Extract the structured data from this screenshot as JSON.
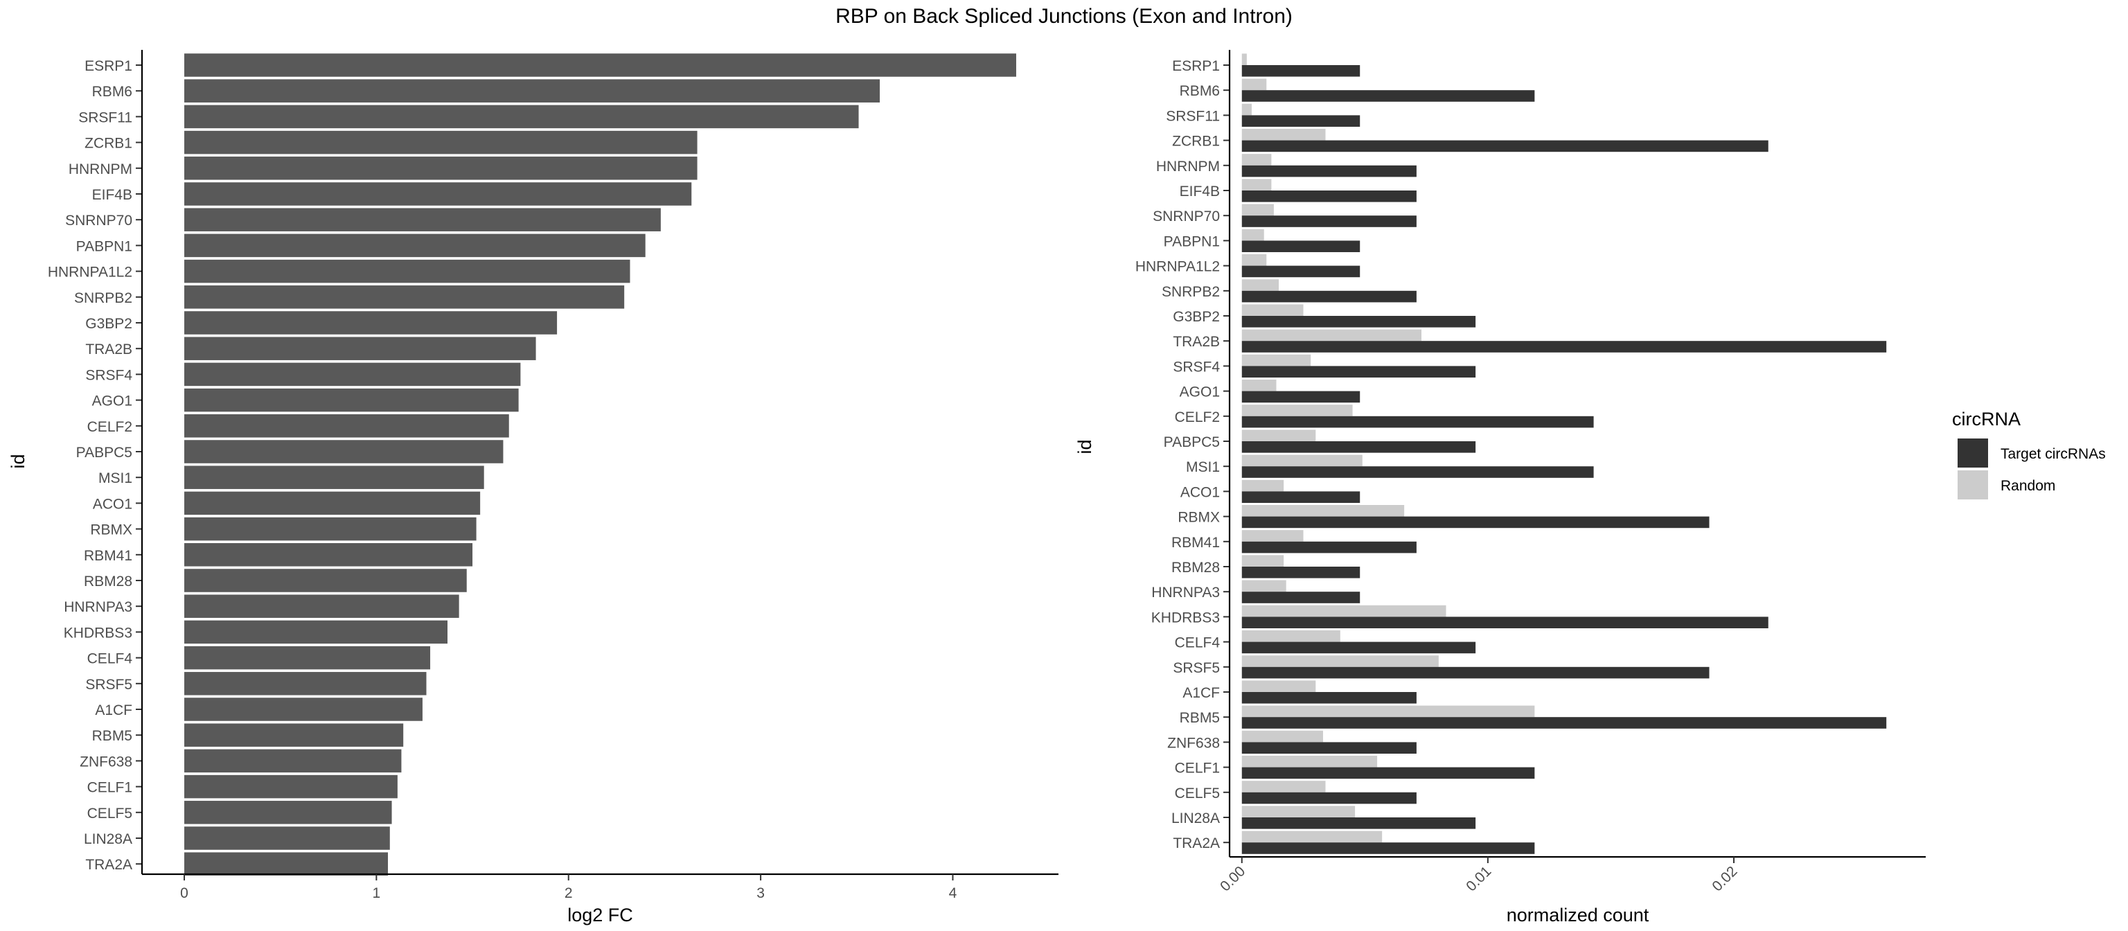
{
  "title": "RBP on Back Spliced Junctions (Exon and Intron)",
  "chart_data": [
    {
      "type": "bar",
      "orientation": "horizontal",
      "xlabel": "log2 FC",
      "ylabel": "id",
      "xlim": [
        -0.22,
        4.55
      ],
      "xticks": [
        "0",
        "1",
        "2",
        "3",
        "4"
      ],
      "grid": false,
      "categories": [
        "ESRP1",
        "RBM6",
        "SRSF11",
        "ZCRB1",
        "HNRNPM",
        "EIF4B",
        "SNRNP70",
        "PABPN1",
        "HNRNPA1L2",
        "SNRPB2",
        "G3BP2",
        "TRA2B",
        "SRSF4",
        "AGO1",
        "CELF2",
        "PABPC5",
        "MSI1",
        "ACO1",
        "RBMX",
        "RBM41",
        "RBM28",
        "HNRNPA3",
        "KHDRBS3",
        "CELF4",
        "SRSF5",
        "A1CF",
        "RBM5",
        "ZNF638",
        "CELF1",
        "CELF5",
        "LIN28A",
        "TRA2A"
      ],
      "values": [
        4.33,
        3.62,
        3.51,
        2.67,
        2.67,
        2.64,
        2.48,
        2.4,
        2.32,
        2.29,
        1.94,
        1.83,
        1.75,
        1.74,
        1.69,
        1.66,
        1.56,
        1.54,
        1.52,
        1.5,
        1.47,
        1.43,
        1.37,
        1.28,
        1.26,
        1.24,
        1.14,
        1.13,
        1.11,
        1.08,
        1.07,
        1.06
      ],
      "color": "#595959"
    },
    {
      "type": "bar",
      "orientation": "horizontal",
      "grouped": true,
      "xlabel": "normalized count",
      "ylabel": "id",
      "xlim": [
        -0.0005,
        0.0278
      ],
      "xticks": [
        "0.00",
        "0.01",
        "0.02"
      ],
      "grid": false,
      "legend_title": "circRNA",
      "legend_position": "right",
      "categories": [
        "ESRP1",
        "RBM6",
        "SRSF11",
        "ZCRB1",
        "HNRNPM",
        "EIF4B",
        "SNRNP70",
        "PABPN1",
        "HNRNPA1L2",
        "SNRPB2",
        "G3BP2",
        "TRA2B",
        "SRSF4",
        "AGO1",
        "CELF2",
        "PABPC5",
        "MSI1",
        "ACO1",
        "RBMX",
        "RBM41",
        "RBM28",
        "HNRNPA3",
        "KHDRBS3",
        "CELF4",
        "SRSF5",
        "A1CF",
        "RBM5",
        "ZNF638",
        "CELF1",
        "CELF5",
        "LIN28A",
        "TRA2A"
      ],
      "series": [
        {
          "name": "Target circRNAs",
          "color": "#333333",
          "values": [
            0.0048,
            0.0119,
            0.0048,
            0.0214,
            0.0071,
            0.0071,
            0.0071,
            0.0048,
            0.0048,
            0.0071,
            0.0095,
            0.0262,
            0.0095,
            0.0048,
            0.0143,
            0.0095,
            0.0143,
            0.0048,
            0.019,
            0.0071,
            0.0048,
            0.0048,
            0.0214,
            0.0095,
            0.019,
            0.0071,
            0.0262,
            0.0071,
            0.0119,
            0.0071,
            0.0095,
            0.0119
          ]
        },
        {
          "name": "Random",
          "color": "#cccccc",
          "values": [
            0.0002,
            0.001,
            0.0004,
            0.0034,
            0.0012,
            0.0012,
            0.0013,
            0.0009,
            0.001,
            0.0015,
            0.0025,
            0.0073,
            0.0028,
            0.0014,
            0.0045,
            0.003,
            0.0049,
            0.0017,
            0.0066,
            0.0025,
            0.0017,
            0.0018,
            0.0083,
            0.004,
            0.008,
            0.003,
            0.0119,
            0.0033,
            0.0055,
            0.0034,
            0.0046,
            0.0057
          ]
        }
      ]
    }
  ]
}
